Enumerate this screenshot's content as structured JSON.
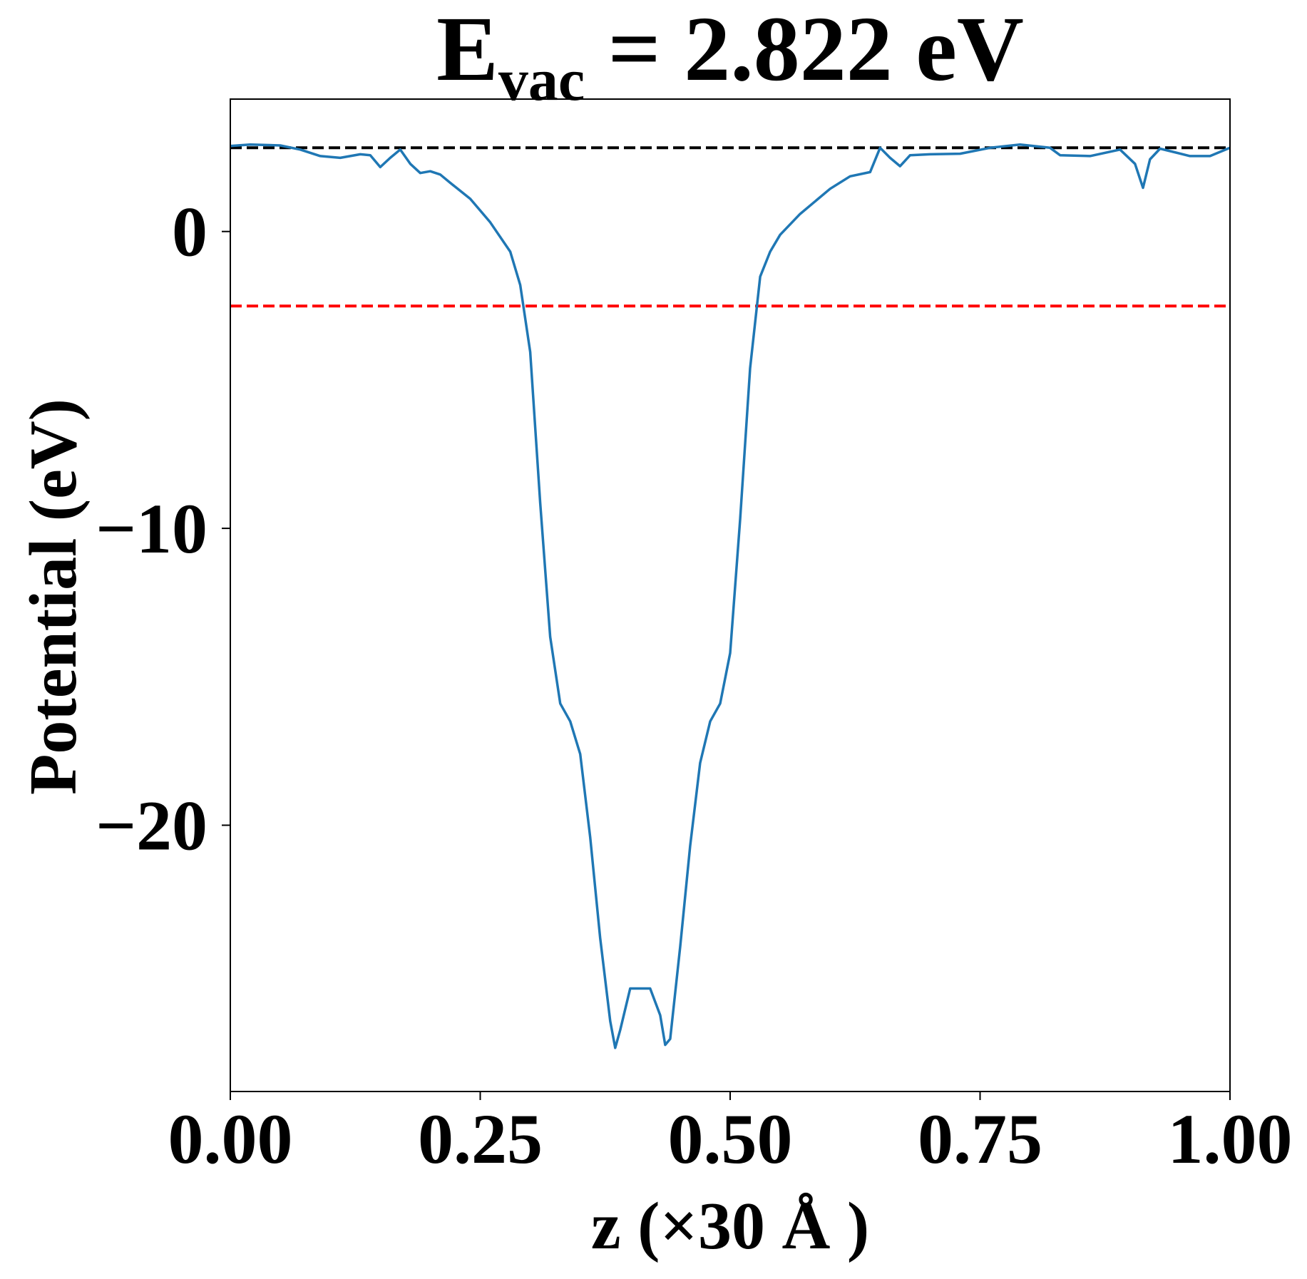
{
  "chart_data": {
    "type": "line",
    "title": "E",
    "title_subscript": "vac",
    "title_suffix": " = 2.822 eV",
    "x_label": "z (×30 Å )",
    "y_label": "Potential (eV)",
    "xlim": [
      0,
      1
    ],
    "ylim": [
      -28.97,
      4.46
    ],
    "xticks": [
      {
        "value": 0,
        "label": "0.00"
      },
      {
        "value": 0.25,
        "label": "0.25"
      },
      {
        "value": 0.5,
        "label": "0.50"
      },
      {
        "value": 0.75,
        "label": "0.75"
      },
      {
        "value": 1,
        "label": "1.00"
      }
    ],
    "yticks": [
      {
        "value": -20,
        "label": "−20"
      },
      {
        "value": -10,
        "label": "−10"
      },
      0
    ],
    "hlines": [
      {
        "value": 2.822,
        "color": "#000000"
      },
      {
        "value": -2.51,
        "color": "#ff0000"
      }
    ],
    "x": [
      0,
      0.02,
      0.05,
      0.07,
      0.09,
      0.11,
      0.13,
      0.14,
      0.15,
      0.16,
      0.17,
      0.18,
      0.19,
      0.2,
      0.21,
      0.22,
      0.24,
      0.26,
      0.28,
      0.29,
      0.3,
      0.31,
      0.32,
      0.33,
      0.34,
      0.35,
      0.36,
      0.37,
      0.38,
      0.385,
      0.39,
      0.4,
      0.41,
      0.42,
      0.43,
      0.435,
      0.44,
      0.45,
      0.46,
      0.47,
      0.48,
      0.49,
      0.5,
      0.51,
      0.52,
      0.53,
      0.54,
      0.55,
      0.57,
      0.6,
      0.62,
      0.64,
      0.65,
      0.66,
      0.67,
      0.68,
      0.7,
      0.73,
      0.76,
      0.79,
      0.82,
      0.83,
      0.86,
      0.89,
      0.905,
      0.913,
      0.92,
      0.93,
      0.96,
      0.98,
      1
    ],
    "series": [
      {
        "name": "potential",
        "color": "#1f77b4",
        "values": [
          2.88,
          2.93,
          2.9,
          2.76,
          2.54,
          2.48,
          2.6,
          2.57,
          2.17,
          2.48,
          2.76,
          2.28,
          1.97,
          2.03,
          1.92,
          1.64,
          1.1,
          0.31,
          -0.68,
          -1.8,
          -4.06,
          -9.14,
          -13.65,
          -15.9,
          -16.5,
          -17.6,
          -20.4,
          -23.8,
          -26.6,
          -27.5,
          -26.9,
          -25.5,
          -25.5,
          -25.5,
          -26.4,
          -27.4,
          -27.2,
          -24.1,
          -20.7,
          -17.9,
          -16.5,
          -15.9,
          -14.2,
          -9.7,
          -4.6,
          -1.52,
          -0.68,
          -0.11,
          0.59,
          1.44,
          1.86,
          2.0,
          2.82,
          2.48,
          2.2,
          2.57,
          2.6,
          2.62,
          2.82,
          2.93,
          2.82,
          2.57,
          2.54,
          2.76,
          2.28,
          1.47,
          2.43,
          2.79,
          2.54,
          2.54,
          2.82
        ]
      }
    ]
  }
}
